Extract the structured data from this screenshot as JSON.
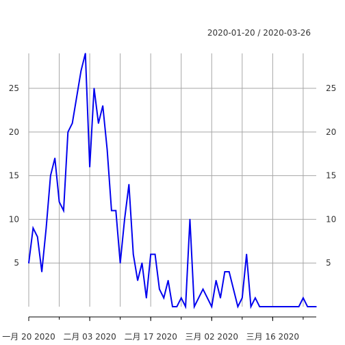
{
  "chart_data": {
    "type": "line",
    "range_label": "2020-01-20 / 2020-03-26",
    "x_start": "2020-01-20",
    "x_end": "2020-03-26",
    "x_tick_labels": [
      {
        "date": "2020-01-20",
        "label": "一月 20 2020"
      },
      {
        "date": "2020-02-03",
        "label": "二月 03 2020"
      },
      {
        "date": "2020-02-17",
        "label": "二月 17 2020"
      },
      {
        "date": "2020-03-02",
        "label": "三月 02 2020"
      },
      {
        "date": "2020-03-16",
        "label": "三月 16 2020"
      }
    ],
    "y_ticks": [
      5,
      10,
      15,
      20,
      25
    ],
    "ylim": [
      0,
      29
    ],
    "grid": true,
    "series": [
      {
        "color": "#0000ee",
        "points": [
          [
            "2020-01-20",
            5
          ],
          [
            "2020-01-21",
            9
          ],
          [
            "2020-01-22",
            8
          ],
          [
            "2020-01-23",
            4
          ],
          [
            "2020-01-24",
            9
          ],
          [
            "2020-01-25",
            15
          ],
          [
            "2020-01-26",
            17
          ],
          [
            "2020-01-27",
            12
          ],
          [
            "2020-01-28",
            11
          ],
          [
            "2020-01-29",
            20
          ],
          [
            "2020-01-30",
            21
          ],
          [
            "2020-01-31",
            24
          ],
          [
            "2020-02-01",
            27
          ],
          [
            "2020-02-02",
            29
          ],
          [
            "2020-02-03",
            16
          ],
          [
            "2020-02-04",
            25
          ],
          [
            "2020-02-05",
            21
          ],
          [
            "2020-02-06",
            23
          ],
          [
            "2020-02-07",
            18
          ],
          [
            "2020-02-08",
            11
          ],
          [
            "2020-02-09",
            11
          ],
          [
            "2020-02-10",
            5
          ],
          [
            "2020-02-11",
            10
          ],
          [
            "2020-02-12",
            14
          ],
          [
            "2020-02-13",
            6
          ],
          [
            "2020-02-14",
            3
          ],
          [
            "2020-02-15",
            5
          ],
          [
            "2020-02-16",
            1
          ],
          [
            "2020-02-17",
            6
          ],
          [
            "2020-02-18",
            6
          ],
          [
            "2020-02-19",
            2
          ],
          [
            "2020-02-20",
            1
          ],
          [
            "2020-02-21",
            3
          ],
          [
            "2020-02-22",
            0
          ],
          [
            "2020-02-23",
            0
          ],
          [
            "2020-02-24",
            1
          ],
          [
            "2020-02-25",
            0
          ],
          [
            "2020-02-26",
            10
          ],
          [
            "2020-02-27",
            0
          ],
          [
            "2020-02-28",
            1
          ],
          [
            "2020-02-29",
            2
          ],
          [
            "2020-03-01",
            1
          ],
          [
            "2020-03-02",
            0
          ],
          [
            "2020-03-03",
            3
          ],
          [
            "2020-03-04",
            1
          ],
          [
            "2020-03-05",
            4
          ],
          [
            "2020-03-06",
            4
          ],
          [
            "2020-03-07",
            2
          ],
          [
            "2020-03-08",
            0
          ],
          [
            "2020-03-09",
            1
          ],
          [
            "2020-03-10",
            6
          ],
          [
            "2020-03-11",
            0
          ],
          [
            "2020-03-12",
            1
          ],
          [
            "2020-03-13",
            0
          ],
          [
            "2020-03-14",
            0
          ],
          [
            "2020-03-15",
            0
          ],
          [
            "2020-03-16",
            0
          ],
          [
            "2020-03-17",
            0
          ],
          [
            "2020-03-18",
            0
          ],
          [
            "2020-03-19",
            0
          ],
          [
            "2020-03-20",
            0
          ],
          [
            "2020-03-21",
            0
          ],
          [
            "2020-03-22",
            0
          ],
          [
            "2020-03-23",
            1
          ],
          [
            "2020-03-24",
            0
          ],
          [
            "2020-03-25",
            0
          ],
          [
            "2020-03-26",
            0
          ]
        ]
      }
    ]
  }
}
